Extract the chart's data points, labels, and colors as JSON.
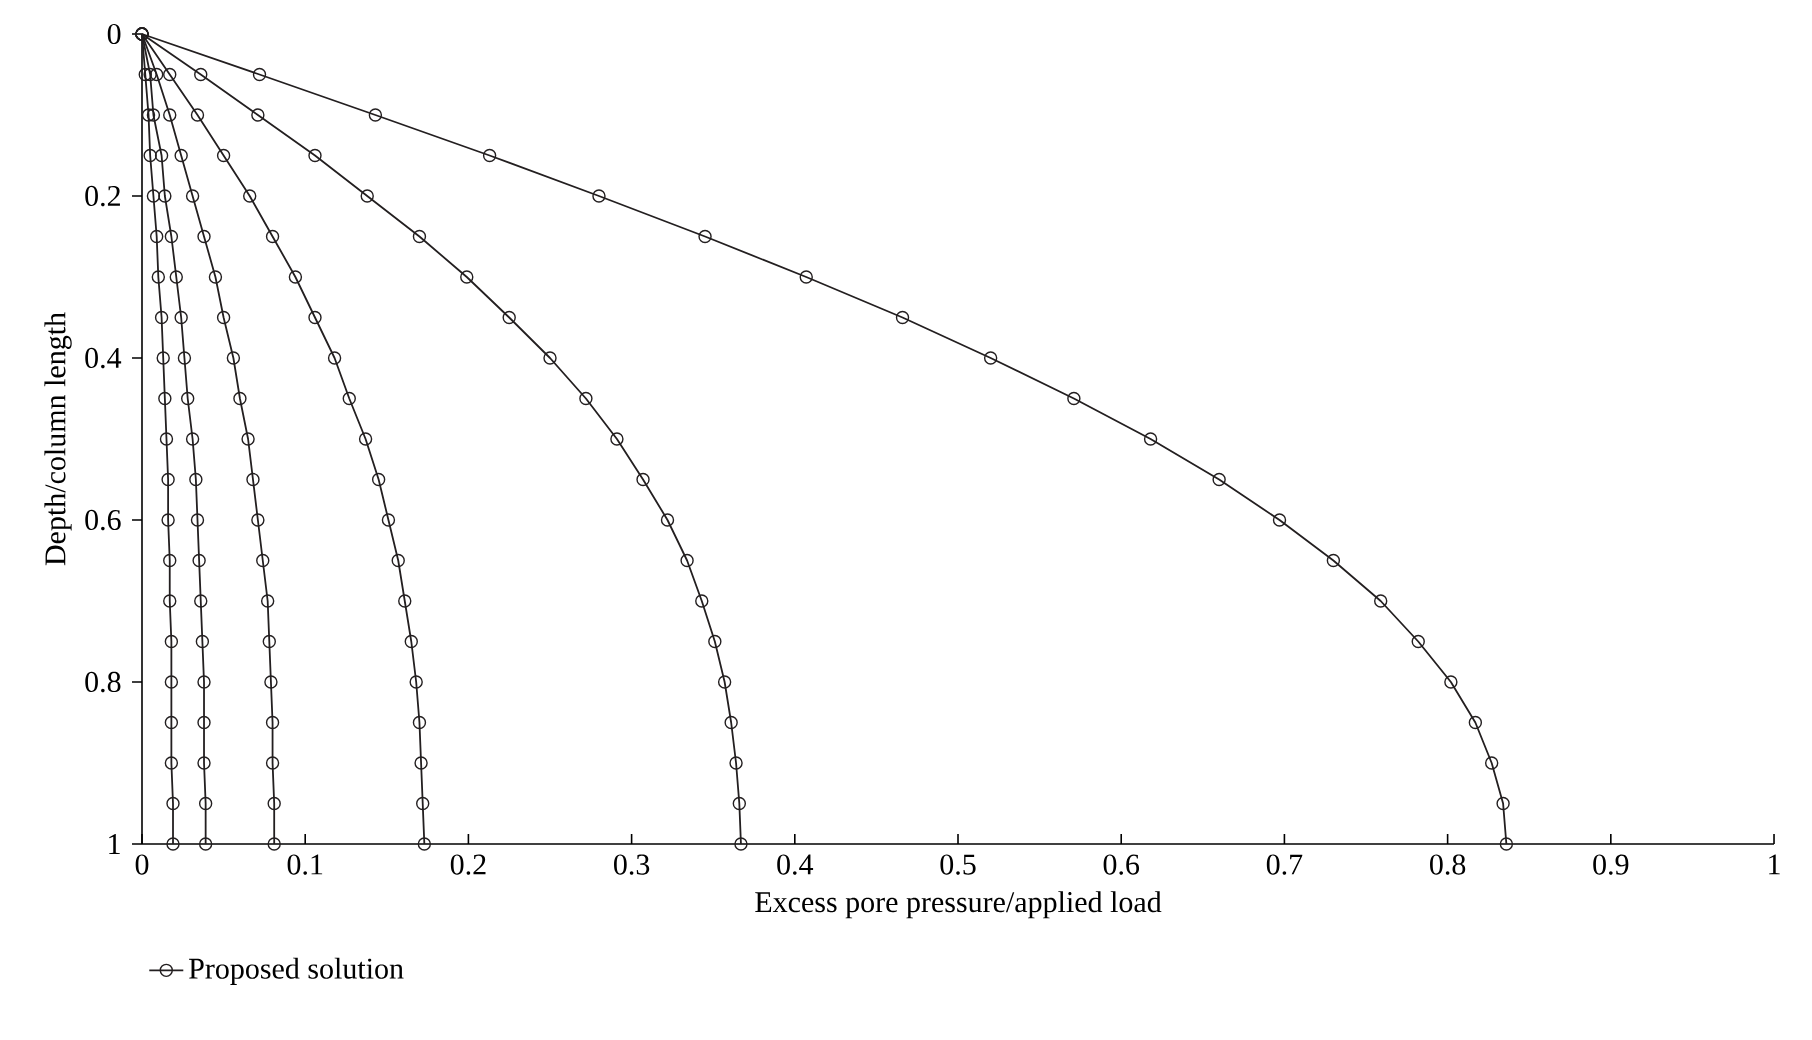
{
  "chart_data": {
    "type": "line",
    "xlabel": "Excess pore pressure/applied load",
    "ylabel": "Depth/column length",
    "xlim": [
      0,
      1
    ],
    "ylim": [
      1,
      0
    ],
    "xticks": [
      0,
      0.1,
      0.2,
      0.3,
      0.4,
      0.5,
      0.6,
      0.7,
      0.8,
      0.9,
      1
    ],
    "yticks": [
      0,
      0.2,
      0.4,
      0.6,
      0.8,
      1
    ],
    "grid": false,
    "legend": "bottom left",
    "marker": "circle",
    "line_style": "solid",
    "series": [
      {
        "name": "Proposed solution",
        "color": "#231f20",
        "x": [
          0,
          0.072,
          0.143,
          0.213,
          0.28,
          0.345,
          0.407,
          0.466,
          0.52,
          0.571,
          0.618,
          0.66,
          0.697,
          0.73,
          0.759,
          0.782,
          0.802,
          0.817,
          0.827,
          0.834,
          0.836
        ],
        "values": [
          0,
          0.05,
          0.1,
          0.15,
          0.2,
          0.25,
          0.3,
          0.35,
          0.4,
          0.45,
          0.5,
          0.55,
          0.6,
          0.65,
          0.7,
          0.75,
          0.8,
          0.85,
          0.9,
          0.95,
          1
        ]
      },
      {
        "color": "#231f20",
        "x": [
          0,
          0.036,
          0.071,
          0.106,
          0.138,
          0.17,
          0.199,
          0.225,
          0.25,
          0.272,
          0.291,
          0.307,
          0.322,
          0.334,
          0.343,
          0.351,
          0.357,
          0.361,
          0.364,
          0.366,
          0.367
        ],
        "values": [
          0,
          0.05,
          0.1,
          0.15,
          0.2,
          0.25,
          0.3,
          0.35,
          0.4,
          0.45,
          0.5,
          0.55,
          0.6,
          0.65,
          0.7,
          0.75,
          0.8,
          0.85,
          0.9,
          0.95,
          1
        ]
      },
      {
        "color": "#231f20",
        "x": [
          0,
          0.017,
          0.034,
          0.05,
          0.066,
          0.08,
          0.094,
          0.106,
          0.118,
          0.127,
          0.137,
          0.145,
          0.151,
          0.157,
          0.161,
          0.165,
          0.168,
          0.17,
          0.171,
          0.172,
          0.173
        ],
        "values": [
          0,
          0.05,
          0.1,
          0.15,
          0.2,
          0.25,
          0.3,
          0.35,
          0.4,
          0.45,
          0.5,
          0.55,
          0.6,
          0.65,
          0.7,
          0.75,
          0.8,
          0.85,
          0.9,
          0.95,
          1
        ]
      },
      {
        "color": "#231f20",
        "x": [
          0,
          0.009,
          0.017,
          0.024,
          0.031,
          0.038,
          0.045,
          0.05,
          0.056,
          0.06,
          0.065,
          0.068,
          0.071,
          0.074,
          0.077,
          0.078,
          0.079,
          0.08,
          0.08,
          0.081,
          0.081
        ],
        "values": [
          0,
          0.05,
          0.1,
          0.15,
          0.2,
          0.25,
          0.3,
          0.35,
          0.4,
          0.45,
          0.5,
          0.55,
          0.6,
          0.65,
          0.7,
          0.75,
          0.8,
          0.85,
          0.9,
          0.95,
          1
        ]
      },
      {
        "color": "#231f20",
        "x": [
          0,
          0.005,
          0.007,
          0.012,
          0.014,
          0.018,
          0.021,
          0.024,
          0.026,
          0.028,
          0.031,
          0.033,
          0.034,
          0.035,
          0.036,
          0.037,
          0.038,
          0.038,
          0.038,
          0.039,
          0.039
        ],
        "values": [
          0,
          0.05,
          0.1,
          0.15,
          0.2,
          0.25,
          0.3,
          0.35,
          0.4,
          0.45,
          0.5,
          0.55,
          0.6,
          0.65,
          0.7,
          0.75,
          0.8,
          0.85,
          0.9,
          0.95,
          1
        ]
      },
      {
        "color": "#231f20",
        "x": [
          0,
          0.002,
          0.004,
          0.005,
          0.007,
          0.009,
          0.01,
          0.012,
          0.013,
          0.014,
          0.015,
          0.016,
          0.016,
          0.017,
          0.017,
          0.018,
          0.018,
          0.018,
          0.018,
          0.019,
          0.019
        ],
        "values": [
          0,
          0.05,
          0.1,
          0.15,
          0.2,
          0.25,
          0.3,
          0.35,
          0.4,
          0.45,
          0.5,
          0.55,
          0.6,
          0.65,
          0.7,
          0.75,
          0.8,
          0.85,
          0.9,
          0.95,
          1
        ]
      }
    ]
  }
}
